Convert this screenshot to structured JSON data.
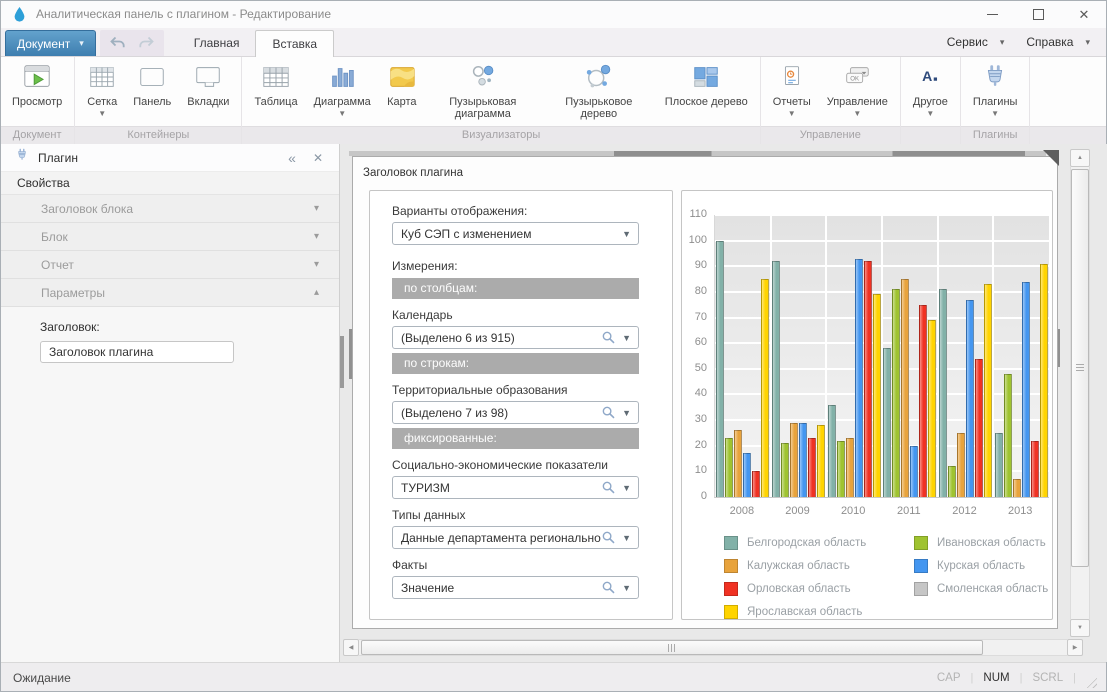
{
  "window": {
    "title": "Аналитическая панель с плагином - Редактирование"
  },
  "menu": {
    "document_label": "Документ",
    "tabs": [
      {
        "label": "Главная",
        "active": false
      },
      {
        "label": "Вставка",
        "active": true
      }
    ],
    "right": [
      {
        "label": "Сервис"
      },
      {
        "label": "Справка"
      }
    ]
  },
  "ribbon": {
    "groups": [
      {
        "label": "Документ",
        "buttons": [
          {
            "label": "Просмотр",
            "icon": "preview",
            "dropdown": false
          }
        ]
      },
      {
        "label": "Контейнеры",
        "buttons": [
          {
            "label": "Сетка",
            "icon": "grid",
            "dropdown": true
          },
          {
            "label": "Панель",
            "icon": "panel",
            "dropdown": false
          },
          {
            "label": "Вкладки",
            "icon": "tabs",
            "dropdown": false
          }
        ]
      },
      {
        "label": "Визуализаторы",
        "buttons": [
          {
            "label": "Таблица",
            "icon": "table",
            "dropdown": false
          },
          {
            "label": "Диаграмма",
            "icon": "chart",
            "dropdown": true
          },
          {
            "label": "Карта",
            "icon": "map",
            "dropdown": false
          },
          {
            "label": "Пузырьковая диаграмма",
            "icon": "bubble-chart",
            "dropdown": false
          },
          {
            "label": "Пузырьковое дерево",
            "icon": "bubble-tree",
            "dropdown": false
          },
          {
            "label": "Плоское дерево",
            "icon": "treemap",
            "dropdown": false
          }
        ]
      },
      {
        "label": "Управление",
        "buttons": [
          {
            "label": "Отчеты",
            "icon": "report",
            "dropdown": true
          },
          {
            "label": "Управление",
            "icon": "control",
            "dropdown": true
          }
        ]
      },
      {
        "label": "",
        "buttons": [
          {
            "label": "Другое",
            "icon": "other",
            "dropdown": true
          }
        ]
      },
      {
        "label": "Плагины",
        "buttons": [
          {
            "label": "Плагины",
            "icon": "plugin",
            "dropdown": true
          }
        ]
      }
    ]
  },
  "sidebar": {
    "title": "Плагин",
    "collapse_glyph": "«",
    "close_glyph": "✕",
    "section_label": "Свойства",
    "accordion": [
      {
        "label": "Заголовок блока",
        "expanded": false
      },
      {
        "label": "Блок",
        "expanded": false
      },
      {
        "label": "Отчет",
        "expanded": false
      },
      {
        "label": "Параметры",
        "expanded": true
      }
    ],
    "param_label": "Заголовок:",
    "param_value": "Заголовок плагина"
  },
  "editor": {
    "container_title": "Заголовок плагина",
    "form_rows": [
      {
        "type": "label",
        "text": "Варианты отображения:"
      },
      {
        "type": "select",
        "name": "display-variant",
        "value": "Куб СЭП с изменением",
        "search": false,
        "mb": 14
      },
      {
        "type": "label",
        "text": "Измерения:"
      },
      {
        "type": "band",
        "text": "по столбцам:"
      },
      {
        "type": "label",
        "text": "Календарь"
      },
      {
        "type": "select",
        "name": "calendar",
        "value": "(Выделено 6 из 915)",
        "search": true
      },
      {
        "type": "band",
        "text": "по строкам:"
      },
      {
        "type": "label",
        "text": "Территориальные образования"
      },
      {
        "type": "select",
        "name": "territories",
        "value": "(Выделено 7 из 98)",
        "search": true
      },
      {
        "type": "band",
        "text": "фиксированные:"
      },
      {
        "type": "label",
        "text": "Социально-экономические показатели"
      },
      {
        "type": "select",
        "name": "indicators",
        "value": "ТУРИЗМ",
        "search": true
      },
      {
        "type": "label",
        "text": "Типы данных"
      },
      {
        "type": "select",
        "name": "data-types",
        "value": "Данные департамента региональной эк",
        "search": true
      },
      {
        "type": "label",
        "text": "Факты"
      },
      {
        "type": "select",
        "name": "facts",
        "value": "Значение",
        "search": true
      }
    ]
  },
  "chart_data": {
    "type": "bar",
    "title": "",
    "categories": [
      "2008",
      "2009",
      "2010",
      "2011",
      "2012",
      "2013"
    ],
    "series": [
      {
        "name": "Белгородская область",
        "color": "#82B1A8",
        "values": [
          100,
          92,
          36,
          58,
          81,
          25
        ]
      },
      {
        "name": "Ивановская область",
        "color": "#9FC330",
        "values": [
          23,
          21,
          22,
          81,
          12,
          48
        ]
      },
      {
        "name": "Калужская область",
        "color": "#E8A33C",
        "values": [
          26,
          29,
          23,
          85,
          25,
          7
        ]
      },
      {
        "name": "Курская область",
        "color": "#4496F0",
        "values": [
          17,
          29,
          93,
          20,
          77,
          84
        ]
      },
      {
        "name": "Орловская область",
        "color": "#F03223",
        "values": [
          10,
          23,
          92,
          75,
          54,
          22
        ]
      },
      {
        "name": "Смоленская область",
        "color": "#C6C6C6",
        "values": [
          0,
          0,
          0,
          0,
          0,
          0
        ]
      },
      {
        "name": "Ярославская область",
        "color": "#FFD400",
        "values": [
          85,
          28,
          79,
          69,
          83,
          91
        ]
      }
    ],
    "legend_order": [
      0,
      2,
      4,
      6,
      1,
      3,
      5
    ],
    "ylim": [
      0,
      110
    ],
    "ytick_step": 10,
    "grid": true,
    "legend_position": "bottom"
  },
  "statusbar": {
    "text": "Ожидание",
    "flags": [
      {
        "label": "CAP",
        "active": false
      },
      {
        "label": "NUM",
        "active": true
      },
      {
        "label": "SCRL",
        "active": false
      }
    ]
  }
}
